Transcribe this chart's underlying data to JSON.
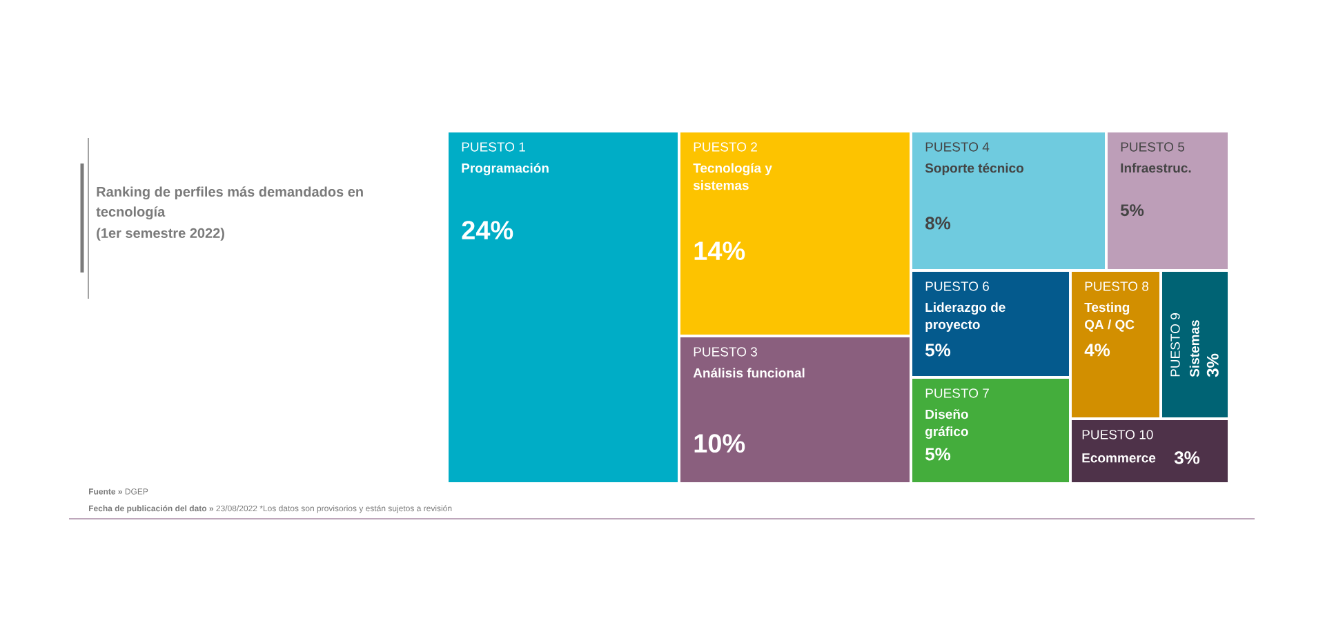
{
  "chart_data": {
    "type": "other",
    "title": "Ranking de perfiles más demandados en tecnología",
    "subtitle": "(1er semestre 2022)",
    "categories": [
      "Programación",
      "Tecnología y sistemas",
      "Análisis funcional",
      "Soporte técnico",
      "Infraestruc.",
      "Liderazgo de proyecto",
      "Diseño gráfico",
      "Testing QA / QC",
      "Sistemas",
      "Ecommerce"
    ],
    "values": [
      24,
      14,
      10,
      8,
      5,
      5,
      5,
      4,
      3,
      3
    ],
    "value_labels": [
      "24%",
      "14%",
      "10%",
      "8%",
      "5%",
      "5%",
      "5%",
      "4%",
      "3%",
      "3%"
    ],
    "colors": [
      "#00adc6",
      "#fdc300",
      "#8a5f7e",
      "#6fcbdf",
      "#bd9eb8",
      "#045a8d",
      "#44ad3c",
      "#d28f00",
      "#006374",
      "#4e3249"
    ],
    "annotations": [
      "PUESTO 1",
      "PUESTO 2",
      "PUESTO 3",
      "PUESTO 4",
      "PUESTO 5",
      "PUESTO 6",
      "PUESTO 7",
      "PUESTO 8",
      "PUESTO 9",
      "PUESTO 10",
      "**Fuente »** DGEP",
      "**Fecha de publicación del dato »** 23/08/2022 *Los datos son provisorios y están sujetos a revisión"
    ]
  }
}
